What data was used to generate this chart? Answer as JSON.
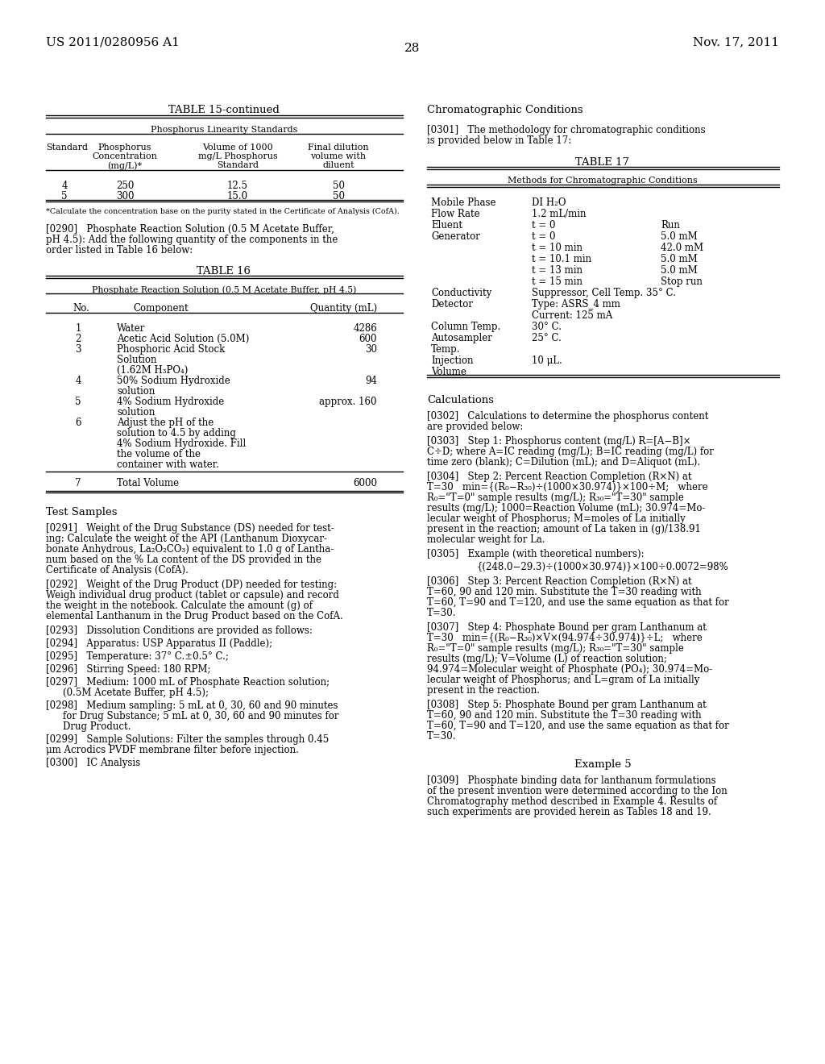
{
  "page_number": "28",
  "header_left": "US 2011/0280956 A1",
  "header_right": "Nov. 17, 2011",
  "background_color": "#ffffff",
  "text_color": "#000000"
}
